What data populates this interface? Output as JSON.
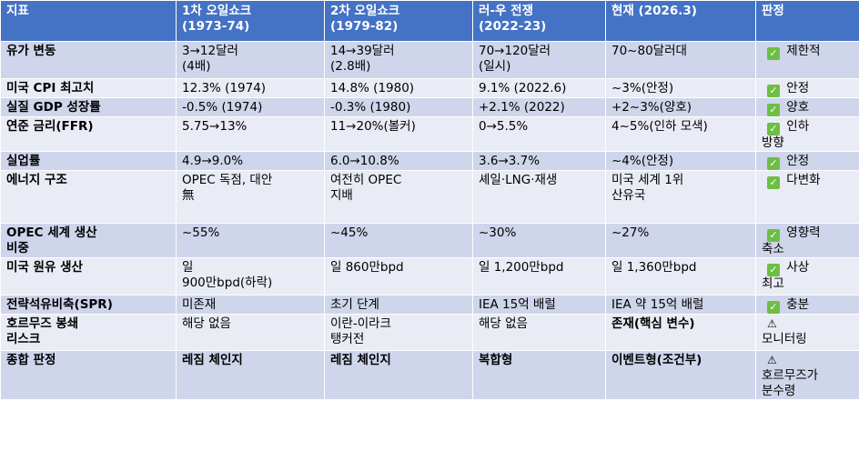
{
  "headers": [
    "지표",
    "1차 오일쇼크\n(1973-74)",
    "2차 오일쇼크\n(1979-82)",
    "러-우 전쟁\n(2022-23)",
    "현재 (2026.3)",
    "판정"
  ],
  "rows": [
    {
      "label": "유가 변동",
      "c1": "3→12달러\n(4배)",
      "c2": "14→39달러\n(2.8배)",
      "c3": "70→120달러\n(일시)",
      "c4": "70~80달러대",
      "icon": "check-icon",
      "verdict": "제한적"
    },
    {
      "label": "미국 CPI 최고치",
      "c1": "12.3% (1974)",
      "c2": "14.8% (1980)",
      "c3": "9.1% (2022.6)",
      "c4": "~3%(안정)",
      "icon": "check-icon",
      "verdict": "안정"
    },
    {
      "label": "실질 GDP 성장률",
      "c1": "-0.5% (1974)",
      "c2": "-0.3% (1980)",
      "c3": "+2.1% (2022)",
      "c4": "+2~3%(양호)",
      "icon": "check-icon",
      "verdict": "양호"
    },
    {
      "label": "연준 금리(FFR)",
      "c1": "5.75→13%",
      "c2": "11→20%(볼커)",
      "c3": "0→5.5%",
      "c4": "4~5%(인하 모색)",
      "icon": "check-icon",
      "verdict": "인하\n방향"
    },
    {
      "label": "실업률",
      "c1": "4.9→9.0%",
      "c2": "6.0→10.8%",
      "c3": "3.6→3.7%",
      "c4": "~4%(안정)",
      "icon": "check-icon",
      "verdict": "안정"
    },
    {
      "label": "에너지 구조",
      "c1": "OPEC 독점, 대안\n無",
      "c2": "여전히 OPEC\n지배",
      "c3": "셰일·LNG·재생",
      "c4": "미국 세계 1위\n산유국",
      "icon": "check-icon",
      "verdict": "다변화"
    },
    {
      "label": "OPEC 세계 생산\n비중",
      "c1": "~55%",
      "c2": "~45%",
      "c3": "~30%",
      "c4": "~27%",
      "icon": "check-icon",
      "verdict": "영향력\n축소"
    },
    {
      "label": "미국 원유 생산",
      "c1": "일\n900만bpd(하락)",
      "c2": "일 860만bpd",
      "c3": "일 1,200만bpd",
      "c4": "일 1,360만bpd",
      "icon": "check-icon",
      "verdict": "사상\n최고"
    },
    {
      "label": "전략석유비축(SPR)",
      "c1": "미존재",
      "c2": "초기 단계",
      "c3": "IEA 15억 배럴",
      "c4": "IEA 약 15억 배럴",
      "icon": "check-icon",
      "verdict": "충분"
    },
    {
      "label": "호르무즈 봉쇄\n리스크",
      "c1": "해당 없음",
      "c2": "이란-이라크\n탱커전",
      "c3": "해당 없음",
      "c4": "존재(핵심 변수)",
      "c4_bold": true,
      "icon": "warning-icon",
      "verdict": "모니터링"
    },
    {
      "label": "종합 판정",
      "c1": "레짐 체인지",
      "c2": "레짐 체인지",
      "c3": "복합형",
      "c4": "이벤트형(조건부)",
      "all_bold": true,
      "icon": "warning-icon",
      "verdict": "호르무즈가\n분수령"
    }
  ]
}
